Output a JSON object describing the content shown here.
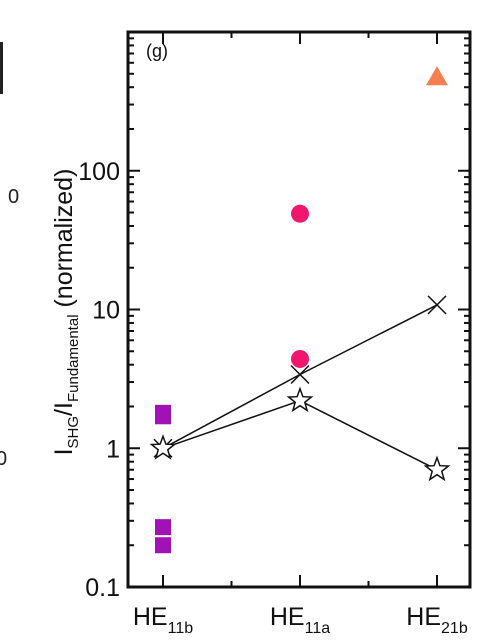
{
  "chart_data": {
    "type": "scatter",
    "panel_label": "(g)",
    "ylabel": {
      "main1": "I",
      "sub1": "SHG",
      "main2": "/I",
      "sub2": "Fundamental",
      "rest": " (normalized)"
    },
    "yscale": "log",
    "ylim": [
      0.1,
      1000
    ],
    "yticks": [
      {
        "value": 0.1,
        "label": "0.1"
      },
      {
        "value": 1,
        "label": "1"
      },
      {
        "value": 10,
        "label": "10"
      },
      {
        "value": 100,
        "label": "100"
      }
    ],
    "categories": [
      {
        "main": "HE",
        "sub": "11b"
      },
      {
        "main": "HE",
        "sub": "11a"
      },
      {
        "main": "HE",
        "sub": "21b"
      }
    ],
    "series": [
      {
        "marker": "square",
        "color": "#a012b4",
        "connected": false,
        "points": [
          {
            "x": 0,
            "y": 1.8
          },
          {
            "x": 0,
            "y": 1.7
          },
          {
            "x": 0,
            "y": 0.27
          },
          {
            "x": 0,
            "y": 0.2
          }
        ]
      },
      {
        "marker": "circle",
        "color": "#f0186e",
        "connected": false,
        "points": [
          {
            "x": 1,
            "y": 49
          },
          {
            "x": 1,
            "y": 4.4
          }
        ]
      },
      {
        "marker": "triangle",
        "color": "#f47f50",
        "connected": false,
        "points": [
          {
            "x": 2,
            "y": 480
          }
        ]
      },
      {
        "marker": "cross",
        "color": "#111111",
        "connected": true,
        "points": [
          {
            "x": 0,
            "y": 1.0
          },
          {
            "x": 1,
            "y": 3.4
          },
          {
            "x": 2,
            "y": 10.8
          }
        ]
      },
      {
        "marker": "star",
        "color": "#111111",
        "connected": true,
        "points": [
          {
            "x": 0,
            "y": 1.0
          },
          {
            "x": 1,
            "y": 2.2
          },
          {
            "x": 2,
            "y": 0.7
          }
        ]
      }
    ]
  },
  "edge_fragments": [
    {
      "text": "0"
    },
    {
      "text": "0"
    }
  ]
}
